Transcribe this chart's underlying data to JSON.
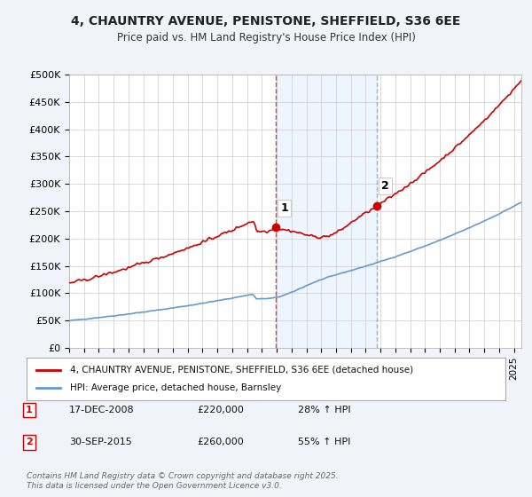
{
  "title": "4, CHAUNTRY AVENUE, PENISTONE, SHEFFIELD, S36 6EE",
  "subtitle": "Price paid vs. HM Land Registry's House Price Index (HPI)",
  "ylabel_vals": [
    0,
    50000,
    100000,
    150000,
    200000,
    250000,
    300000,
    350000,
    400000,
    450000,
    500000
  ],
  "ylabel_labels": [
    "£0",
    "£50K",
    "£100K",
    "£150K",
    "£200K",
    "£250K",
    "£300K",
    "£350K",
    "£400K",
    "£450K",
    "£500K"
  ],
  "ylim": [
    0,
    500000
  ],
  "xlim_start": 1995.0,
  "xlim_end": 2025.5,
  "house_color": "#cc0000",
  "hpi_color": "#6699cc",
  "sale1_x": 2008.96,
  "sale1_y": 220000,
  "sale1_label": "1",
  "sale2_x": 2015.75,
  "sale2_y": 260000,
  "sale2_label": "2",
  "vline1_x": 2008.96,
  "vline2_x": 2015.75,
  "legend_house": "4, CHAUNTRY AVENUE, PENISTONE, SHEFFIELD, S36 6EE (detached house)",
  "legend_hpi": "HPI: Average price, detached house, Barnsley",
  "table_row1": [
    "1",
    "17-DEC-2008",
    "£220,000",
    "28% ↑ HPI"
  ],
  "table_row2": [
    "2",
    "30-SEP-2015",
    "£260,000",
    "55% ↑ HPI"
  ],
  "footnote": "Contains HM Land Registry data © Crown copyright and database right 2025.\nThis data is licensed under the Open Government Licence v3.0.",
  "background_color": "#f0f4fa",
  "plot_bg_color": "#ffffff",
  "grid_color": "#cccccc"
}
